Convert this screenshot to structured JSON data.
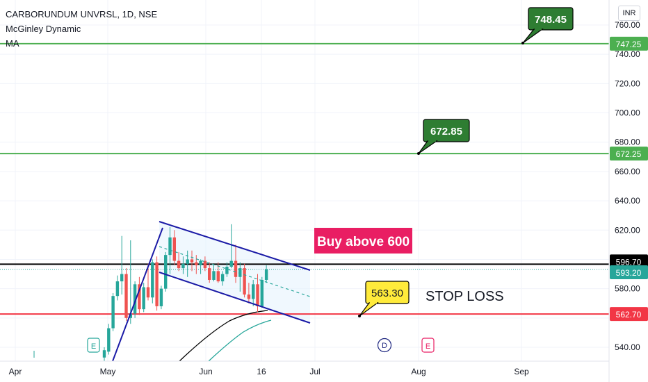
{
  "legend": {
    "symbol_line": "CARBORUNDUM UNVRSL, 1D, NSE",
    "indicator": "McGinley Dynamic",
    "indicator2": "MA"
  },
  "currency": "INR",
  "annotations": {
    "buy_label": "Buy above 600",
    "stop_loss_label": "STOP LOSS",
    "target2_callout": "748.45",
    "target1_callout": "672.85",
    "stop_callout": "563.30",
    "event_e1": "E",
    "event_d": "D",
    "event_e2": "E"
  },
  "price_tags": {
    "resistance": "596.70",
    "last": "593.20",
    "target1": "672.25",
    "target2": "747.25",
    "stop": "562.70"
  },
  "colors": {
    "up": "#26a69a",
    "down": "#ef5350",
    "target_line": "#4caf50",
    "stop_line": "#f23645",
    "channel": "#1a1aa6",
    "buy_bg": "#e91e63",
    "stop_callout_bg": "#ffeb3b",
    "target_callout_bg": "#2e7d32",
    "event_blue": "#2962ff",
    "event_pink": "#e91e63"
  },
  "chart_data": {
    "type": "candlestick",
    "title": "CARBORUNDUM UNVRSL, 1D, NSE",
    "ylim": [
      535,
      766
    ],
    "y_ticks": [
      540,
      560,
      580,
      600,
      620,
      640,
      660,
      680,
      700,
      720,
      740,
      760
    ],
    "y_tick_labels": [
      "540.00",
      "560.00",
      "580.00",
      "600.00",
      "620.00",
      "640.00",
      "660.00",
      "680.00",
      "700.00",
      "720.00",
      "740.00",
      "760.00"
    ],
    "x_labels": [
      "Apr",
      "May",
      "Jun",
      "16",
      "Jul",
      "Aug",
      "Sep"
    ],
    "grid": true,
    "horizontal_lines": [
      {
        "price": 747.25,
        "role": "target"
      },
      {
        "price": 672.25,
        "role": "target"
      },
      {
        "price": 596.7,
        "role": "resistance"
      },
      {
        "price": 562.7,
        "role": "stop"
      }
    ],
    "candles": [
      {
        "o": 533,
        "h": 540,
        "l": 525,
        "c": 538
      },
      {
        "o": 537,
        "h": 556,
        "l": 535,
        "c": 553
      },
      {
        "o": 553,
        "h": 577,
        "l": 551,
        "c": 575
      },
      {
        "o": 575,
        "h": 589,
        "l": 572,
        "c": 585
      },
      {
        "o": 585,
        "h": 616,
        "l": 576,
        "c": 590
      },
      {
        "o": 590,
        "h": 594,
        "l": 558,
        "c": 560
      },
      {
        "o": 560,
        "h": 613,
        "l": 556,
        "c": 563
      },
      {
        "o": 563,
        "h": 585,
        "l": 560,
        "c": 583
      },
      {
        "o": 583,
        "h": 588,
        "l": 562,
        "c": 566
      },
      {
        "o": 566,
        "h": 584,
        "l": 564,
        "c": 581
      },
      {
        "o": 581,
        "h": 597,
        "l": 572,
        "c": 574
      },
      {
        "o": 574,
        "h": 600,
        "l": 570,
        "c": 598
      },
      {
        "o": 598,
        "h": 602,
        "l": 565,
        "c": 568
      },
      {
        "o": 568,
        "h": 582,
        "l": 566,
        "c": 580
      },
      {
        "o": 580,
        "h": 605,
        "l": 578,
        "c": 603
      },
      {
        "o": 603,
        "h": 622,
        "l": 590,
        "c": 615
      },
      {
        "o": 615,
        "h": 620,
        "l": 596,
        "c": 599
      },
      {
        "o": 599,
        "h": 605,
        "l": 592,
        "c": 594
      },
      {
        "o": 594,
        "h": 602,
        "l": 590,
        "c": 597
      },
      {
        "o": 597,
        "h": 606,
        "l": 588,
        "c": 600
      },
      {
        "o": 600,
        "h": 606,
        "l": 592,
        "c": 598
      },
      {
        "o": 598,
        "h": 603,
        "l": 590,
        "c": 596
      },
      {
        "o": 596,
        "h": 600,
        "l": 590,
        "c": 599
      },
      {
        "o": 599,
        "h": 602,
        "l": 592,
        "c": 594
      },
      {
        "o": 594,
        "h": 598,
        "l": 584,
        "c": 586
      },
      {
        "o": 586,
        "h": 596,
        "l": 585,
        "c": 592
      },
      {
        "o": 592,
        "h": 598,
        "l": 584,
        "c": 585
      },
      {
        "o": 585,
        "h": 592,
        "l": 582,
        "c": 590
      },
      {
        "o": 590,
        "h": 598,
        "l": 588,
        "c": 595
      },
      {
        "o": 595,
        "h": 624,
        "l": 594,
        "c": 599
      },
      {
        "o": 599,
        "h": 610,
        "l": 584,
        "c": 588
      },
      {
        "o": 588,
        "h": 598,
        "l": 578,
        "c": 594
      },
      {
        "o": 594,
        "h": 597,
        "l": 574,
        "c": 576
      },
      {
        "o": 576,
        "h": 584,
        "l": 570,
        "c": 573
      },
      {
        "o": 573,
        "h": 586,
        "l": 568,
        "c": 583
      },
      {
        "o": 583,
        "h": 590,
        "l": 564,
        "c": 568
      },
      {
        "o": 568,
        "h": 588,
        "l": 567,
        "c": 586
      },
      {
        "o": 586,
        "h": 596,
        "l": 584,
        "c": 593.2
      }
    ]
  }
}
